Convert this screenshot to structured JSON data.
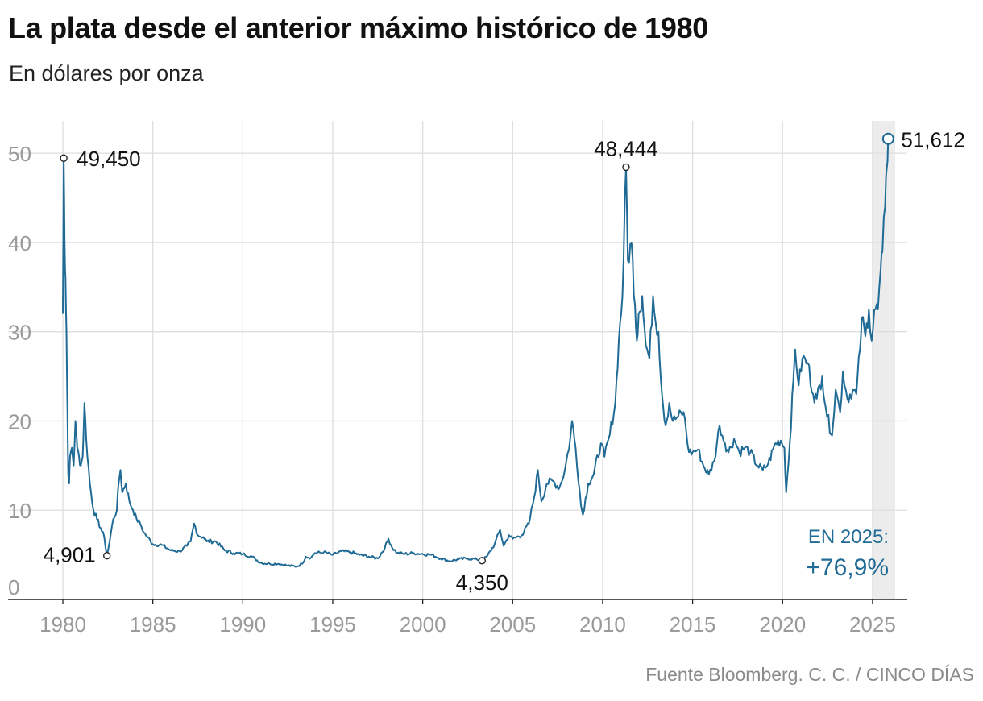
{
  "header": {
    "title": "La plata desde el anterior máximo histórico de 1980",
    "subtitle": "En dólares por onza"
  },
  "footer": {
    "source": "Fuente Bloomberg. C. C. / CINCO DÍAS"
  },
  "colors": {
    "series": "#1f6b96",
    "grid": "#dedede",
    "axis_text": "#9a9a9a",
    "label_text": "#111111",
    "highlight_band": "#ececec",
    "annotation": "#1f6b96"
  },
  "chart_data": {
    "type": "line",
    "title": "La plata desde el anterior máximo histórico de 1980",
    "subtitle": "En dólares por onza",
    "xlabel": "",
    "ylabel": "",
    "xlim": [
      1980,
      2025.9
    ],
    "ylim": [
      0,
      52
    ],
    "grid": true,
    "x_ticks": [
      1980,
      1985,
      1990,
      1995,
      2000,
      2005,
      2010,
      2015,
      2020,
      2025
    ],
    "x_tick_labels": [
      "1980",
      "1985",
      "1990",
      "1995",
      "2000",
      "2005",
      "2010",
      "2015",
      "2020",
      "2025"
    ],
    "y_ticks": [
      0,
      10,
      20,
      30,
      40,
      50
    ],
    "y_tick_labels": [
      "0",
      "10",
      "20",
      "30",
      "40",
      "50"
    ],
    "highlight_range": [
      2025,
      2025.9
    ],
    "series": [
      {
        "name": "",
        "color": "#1f6b96",
        "points": [
          [
            1980.0,
            32
          ],
          [
            1980.05,
            49.45
          ],
          [
            1980.1,
            40
          ],
          [
            1980.15,
            36
          ],
          [
            1980.2,
            30
          ],
          [
            1980.25,
            22
          ],
          [
            1980.3,
            14
          ],
          [
            1980.35,
            13
          ],
          [
            1980.4,
            16
          ],
          [
            1980.5,
            17
          ],
          [
            1980.6,
            15
          ],
          [
            1980.7,
            20
          ],
          [
            1980.8,
            17
          ],
          [
            1980.9,
            16
          ],
          [
            1981.0,
            15
          ],
          [
            1981.1,
            16
          ],
          [
            1981.2,
            22
          ],
          [
            1981.3,
            18
          ],
          [
            1981.5,
            13
          ],
          [
            1981.7,
            10
          ],
          [
            1981.9,
            9
          ],
          [
            1982.1,
            8
          ],
          [
            1982.3,
            7
          ],
          [
            1982.45,
            4.901
          ],
          [
            1982.6,
            6.5
          ],
          [
            1982.8,
            9
          ],
          [
            1983.0,
            10
          ],
          [
            1983.1,
            13
          ],
          [
            1983.2,
            14.5
          ],
          [
            1983.3,
            12
          ],
          [
            1983.5,
            13
          ],
          [
            1983.7,
            11
          ],
          [
            1983.9,
            10
          ],
          [
            1984.1,
            9
          ],
          [
            1984.3,
            8.5
          ],
          [
            1984.5,
            7.5
          ],
          [
            1984.7,
            7
          ],
          [
            1985.0,
            6.2
          ],
          [
            1985.5,
            6.1
          ],
          [
            1986.0,
            5.5
          ],
          [
            1986.5,
            5.4
          ],
          [
            1986.9,
            6
          ],
          [
            1987.1,
            6.5
          ],
          [
            1987.3,
            8.5
          ],
          [
            1987.5,
            7.2
          ],
          [
            1987.8,
            7
          ],
          [
            1988.0,
            6.5
          ],
          [
            1988.5,
            6.5
          ],
          [
            1989.0,
            5.5
          ],
          [
            1989.5,
            5.2
          ],
          [
            1990.0,
            5.1
          ],
          [
            1990.5,
            4.8
          ],
          [
            1991.0,
            4.1
          ],
          [
            1991.5,
            4.0
          ],
          [
            1992.0,
            4.0
          ],
          [
            1992.5,
            3.8
          ],
          [
            1993.0,
            3.7
          ],
          [
            1993.3,
            4.0
          ],
          [
            1993.5,
            4.8
          ],
          [
            1993.8,
            4.7
          ],
          [
            1994.0,
            5.2
          ],
          [
            1994.5,
            5.3
          ],
          [
            1995.0,
            5.0
          ],
          [
            1995.5,
            5.4
          ],
          [
            1996.0,
            5.3
          ],
          [
            1996.5,
            5.0
          ],
          [
            1997.0,
            4.8
          ],
          [
            1997.5,
            4.6
          ],
          [
            1997.9,
            5.8
          ],
          [
            1998.1,
            6.8
          ],
          [
            1998.3,
            5.8
          ],
          [
            1998.6,
            5.2
          ],
          [
            1999.0,
            5.1
          ],
          [
            1999.5,
            5.2
          ],
          [
            2000.0,
            5.1
          ],
          [
            2000.5,
            5.0
          ],
          [
            2001.0,
            4.6
          ],
          [
            2001.5,
            4.3
          ],
          [
            2002.0,
            4.5
          ],
          [
            2002.5,
            4.6
          ],
          [
            2003.0,
            4.5
          ],
          [
            2003.3,
            4.35
          ],
          [
            2003.6,
            4.9
          ],
          [
            2004.0,
            6.2
          ],
          [
            2004.3,
            7.8
          ],
          [
            2004.5,
            6.0
          ],
          [
            2004.8,
            7.2
          ],
          [
            2005.0,
            6.8
          ],
          [
            2005.5,
            7.2
          ],
          [
            2005.9,
            8.5
          ],
          [
            2006.2,
            11.5
          ],
          [
            2006.4,
            14.5
          ],
          [
            2006.6,
            11
          ],
          [
            2006.9,
            13
          ],
          [
            2007.2,
            13.3
          ],
          [
            2007.6,
            12.5
          ],
          [
            2007.9,
            14.5
          ],
          [
            2008.2,
            18
          ],
          [
            2008.3,
            20
          ],
          [
            2008.5,
            17
          ],
          [
            2008.8,
            10.5
          ],
          [
            2008.9,
            9.5
          ],
          [
            2009.2,
            13
          ],
          [
            2009.5,
            14
          ],
          [
            2009.9,
            17.5
          ],
          [
            2010.1,
            16
          ],
          [
            2010.4,
            18.5
          ],
          [
            2010.7,
            22
          ],
          [
            2010.9,
            29
          ],
          [
            2011.1,
            34
          ],
          [
            2011.3,
            48.444
          ],
          [
            2011.4,
            38
          ],
          [
            2011.6,
            40
          ],
          [
            2011.8,
            33
          ],
          [
            2011.9,
            29
          ],
          [
            2012.0,
            32
          ],
          [
            2012.2,
            34
          ],
          [
            2012.4,
            28.5
          ],
          [
            2012.6,
            27
          ],
          [
            2012.8,
            34
          ],
          [
            2012.95,
            31
          ],
          [
            2013.1,
            30
          ],
          [
            2013.3,
            23
          ],
          [
            2013.5,
            19.5
          ],
          [
            2013.7,
            22
          ],
          [
            2013.9,
            20
          ],
          [
            2014.2,
            20.5
          ],
          [
            2014.5,
            21
          ],
          [
            2014.8,
            16.5
          ],
          [
            2015.0,
            16.5
          ],
          [
            2015.3,
            16.8
          ],
          [
            2015.6,
            15
          ],
          [
            2015.9,
            14
          ],
          [
            2016.2,
            15.5
          ],
          [
            2016.5,
            19.5
          ],
          [
            2016.8,
            17.5
          ],
          [
            2017.0,
            16.5
          ],
          [
            2017.3,
            18
          ],
          [
            2017.6,
            16.5
          ],
          [
            2017.9,
            17
          ],
          [
            2018.2,
            16.5
          ],
          [
            2018.6,
            15
          ],
          [
            2018.9,
            14.5
          ],
          [
            2019.2,
            15.2
          ],
          [
            2019.6,
            17.5
          ],
          [
            2019.9,
            17.8
          ],
          [
            2020.1,
            17
          ],
          [
            2020.2,
            12
          ],
          [
            2020.4,
            17.5
          ],
          [
            2020.6,
            24.5
          ],
          [
            2020.7,
            28
          ],
          [
            2020.9,
            24
          ],
          [
            2021.1,
            27
          ],
          [
            2021.4,
            26.5
          ],
          [
            2021.7,
            23
          ],
          [
            2021.9,
            22.5
          ],
          [
            2022.2,
            25
          ],
          [
            2022.4,
            21.5
          ],
          [
            2022.7,
            18.5
          ],
          [
            2022.8,
            19.5
          ],
          [
            2022.95,
            23.5
          ],
          [
            2023.2,
            21
          ],
          [
            2023.35,
            25.5
          ],
          [
            2023.6,
            22.5
          ],
          [
            2023.9,
            23.5
          ],
          [
            2024.1,
            23
          ],
          [
            2024.3,
            28
          ],
          [
            2024.4,
            31.5
          ],
          [
            2024.6,
            29.5
          ],
          [
            2024.8,
            32.5
          ],
          [
            2024.95,
            29
          ],
          [
            2025.1,
            32.5
          ],
          [
            2025.3,
            32.5
          ],
          [
            2025.45,
            37
          ],
          [
            2025.55,
            39
          ],
          [
            2025.7,
            44
          ],
          [
            2025.8,
            48.5
          ],
          [
            2025.87,
            51.612
          ]
        ]
      }
    ],
    "point_labels": [
      {
        "x": 1980.05,
        "y": 49.45,
        "text": "49,450",
        "position": "right"
      },
      {
        "x": 1982.45,
        "y": 4.901,
        "text": "4,901",
        "position": "left"
      },
      {
        "x": 2003.3,
        "y": 4.35,
        "text": "4,350",
        "position": "below"
      },
      {
        "x": 2011.3,
        "y": 48.444,
        "text": "48,444",
        "position": "above"
      },
      {
        "x": 2025.87,
        "y": 51.612,
        "text": "51,612",
        "position": "right"
      }
    ],
    "annotation": {
      "label": "EN 2025:",
      "value": "+76,9%",
      "placement": "bottom-right"
    }
  }
}
